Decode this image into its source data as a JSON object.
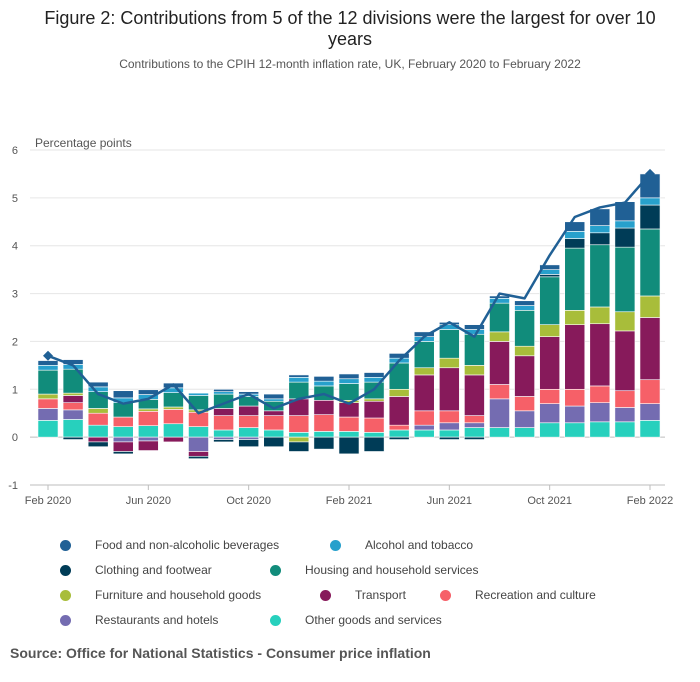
{
  "header": {
    "title": "Figure 2: Contributions from 5 of the 12 divisions were the largest for over 10 years",
    "subtitle": "Contributions to the CPIH 12-month inflation rate, UK, February 2020 to February 2022"
  },
  "footer": {
    "source": "Source: Office for National Statistics - Consumer price inflation"
  },
  "chart_data": {
    "type": "bar",
    "stacked": true,
    "title": "Figure 2: Contributions from 5 of the 12 divisions were the largest for over 10 years",
    "ylabel": "Percentage points",
    "xlabel": "",
    "ylim": [
      -1,
      6
    ],
    "yticks": [
      -1,
      0,
      1,
      2,
      3,
      4,
      5,
      6
    ],
    "xtick_labels": [
      "Feb 2020",
      "Jun 2020",
      "Oct 2020",
      "Feb 2021",
      "Jun 2021",
      "Oct 2021",
      "Feb 2022"
    ],
    "xtick_indices": [
      0,
      4,
      8,
      12,
      16,
      20,
      24
    ],
    "categories": [
      "Feb 2020",
      "Mar 2020",
      "Apr 2020",
      "May 2020",
      "Jun 2020",
      "Jul 2020",
      "Aug 2020",
      "Sep 2020",
      "Oct 2020",
      "Nov 2020",
      "Dec 2020",
      "Jan 2021",
      "Feb 2021",
      "Mar 2021",
      "Apr 2021",
      "May 2021",
      "Jun 2021",
      "Jul 2021",
      "Aug 2021",
      "Sep 2021",
      "Oct 2021",
      "Nov 2021",
      "Dec 2021",
      "Jan 2022",
      "Feb 2022"
    ],
    "series": [
      {
        "name": "Other goods and services",
        "color": "#27d0bd",
        "values": [
          0.35,
          0.37,
          0.25,
          0.22,
          0.24,
          0.28,
          0.22,
          0.15,
          0.2,
          0.15,
          0.1,
          0.12,
          0.12,
          0.1,
          0.15,
          0.15,
          0.15,
          0.2,
          0.2,
          0.2,
          0.3,
          0.3,
          0.32,
          0.32,
          0.35
        ]
      },
      {
        "name": "Restaurants and hotels",
        "color": "#746cb1",
        "values": [
          0.25,
          0.2,
          0.0,
          -0.1,
          -0.08,
          0.0,
          -0.3,
          -0.05,
          -0.05,
          0.0,
          0.0,
          0.0,
          0.0,
          0.0,
          0.0,
          0.1,
          0.15,
          0.1,
          0.6,
          0.35,
          0.4,
          0.35,
          0.4,
          0.3,
          0.35
        ]
      },
      {
        "name": "Recreation and culture",
        "color": "#f66068",
        "values": [
          0.2,
          0.15,
          0.25,
          0.2,
          0.3,
          0.3,
          0.3,
          0.3,
          0.25,
          0.3,
          0.35,
          0.35,
          0.3,
          0.3,
          0.1,
          0.3,
          0.25,
          0.15,
          0.3,
          0.3,
          0.3,
          0.35,
          0.35,
          0.35,
          0.5
        ]
      },
      {
        "name": "Transport",
        "color": "#871a5b",
        "values": [
          0.0,
          0.15,
          -0.1,
          -0.2,
          -0.2,
          -0.1,
          -0.1,
          0.15,
          0.2,
          0.1,
          0.35,
          0.3,
          0.3,
          0.35,
          0.6,
          0.75,
          0.9,
          0.85,
          0.9,
          0.85,
          1.1,
          1.35,
          1.3,
          1.25,
          1.3
        ]
      },
      {
        "name": "Furniture and household goods",
        "color": "#a8bd3a",
        "values": [
          0.1,
          0.05,
          0.1,
          0.0,
          0.05,
          0.05,
          0.05,
          0.0,
          0.0,
          0.0,
          -0.1,
          0.0,
          0.05,
          0.05,
          0.15,
          0.15,
          0.2,
          0.2,
          0.2,
          0.2,
          0.25,
          0.3,
          0.35,
          0.4,
          0.45
        ]
      },
      {
        "name": "Housing and household services",
        "color": "#118c7b",
        "values": [
          0.5,
          0.5,
          0.35,
          0.3,
          0.2,
          0.3,
          0.3,
          0.3,
          0.2,
          0.2,
          0.35,
          0.3,
          0.35,
          0.35,
          0.55,
          0.55,
          0.6,
          0.65,
          0.6,
          0.75,
          1.0,
          1.3,
          1.3,
          1.35,
          1.4
        ]
      },
      {
        "name": "Clothing and footwear",
        "color": "#003c57",
        "values": [
          0.0,
          -0.05,
          -0.1,
          -0.05,
          0.0,
          0.0,
          -0.05,
          -0.05,
          -0.15,
          -0.2,
          -0.2,
          -0.25,
          -0.35,
          -0.3,
          -0.05,
          0.0,
          -0.05,
          -0.05,
          0.0,
          0.0,
          0.05,
          0.2,
          0.25,
          0.4,
          0.5
        ]
      },
      {
        "name": "Alcohol and tobacco",
        "color": "#27a0cc",
        "values": [
          0.1,
          0.1,
          0.1,
          0.1,
          0.1,
          0.1,
          0.05,
          0.05,
          0.05,
          0.05,
          0.1,
          0.1,
          0.1,
          0.1,
          0.1,
          0.1,
          0.1,
          0.1,
          0.1,
          0.1,
          0.1,
          0.15,
          0.15,
          0.15,
          0.15
        ]
      },
      {
        "name": "Food and non-alcoholic beverages",
        "color": "#206095",
        "values": [
          0.1,
          0.1,
          0.1,
          0.15,
          0.1,
          0.1,
          0.0,
          0.05,
          0.05,
          0.1,
          0.05,
          0.1,
          0.1,
          0.1,
          0.1,
          0.1,
          0.05,
          0.1,
          0.05,
          0.1,
          0.1,
          0.2,
          0.35,
          0.4,
          0.5
        ]
      }
    ],
    "total": {
      "name": "CPIH 12-month rate",
      "color": "#206095",
      "values": [
        1.7,
        1.5,
        0.9,
        0.7,
        0.8,
        1.1,
        0.5,
        0.7,
        0.9,
        0.6,
        0.8,
        0.9,
        0.7,
        1.0,
        1.6,
        2.1,
        2.4,
        2.1,
        3.0,
        2.9,
        3.8,
        4.6,
        4.8,
        4.9,
        5.5
      ]
    },
    "legend": {
      "placement": "bottom",
      "items": [
        "Food and non-alcoholic beverages",
        "Alcohol and tobacco",
        "Clothing and footwear",
        "Housing and household services",
        "Furniture and household goods",
        "Transport",
        "Recreation and culture",
        "Restaurants and hotels",
        "Other goods and services"
      ],
      "colors": [
        "#206095",
        "#27a0cc",
        "#003c57",
        "#118c7b",
        "#a8bd3a",
        "#871a5b",
        "#f66068",
        "#746cb1",
        "#27d0bd"
      ]
    }
  }
}
